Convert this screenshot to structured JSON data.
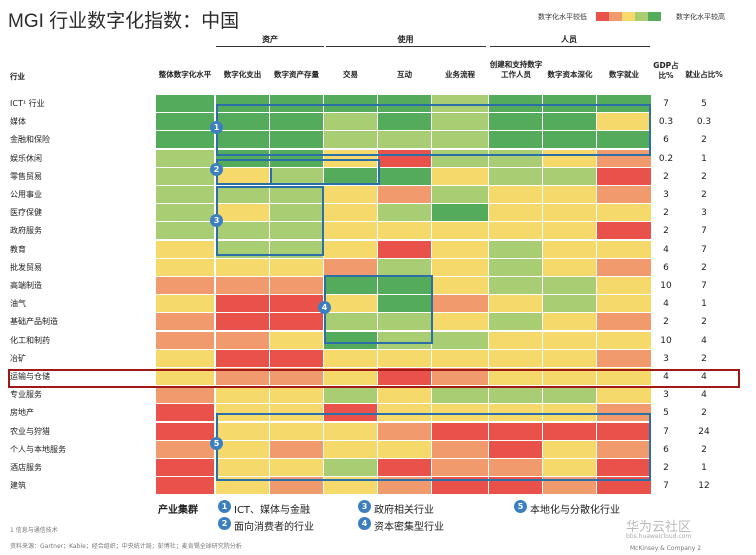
{
  "title": "MGI 行业数字化指数：中国",
  "legend": {
    "low_label": "数字化水平较低",
    "high_label": "数字化水平较高",
    "colors": [
      "#e8524a",
      "#f19a6d",
      "#f6d96b",
      "#a8cd73",
      "#55ab5c"
    ]
  },
  "groups": [
    "资产",
    "使用",
    "人员"
  ],
  "headers": {
    "industry": "行业",
    "overall": "整体数字化水平",
    "columns": [
      "数字化支出",
      "数字资产存量",
      "交易",
      "互动",
      "业务流程",
      "创建和支持数字工作人员",
      "数字资本深化",
      "数字就业"
    ],
    "gdp": "GDP占比%",
    "emp": "就业占比%"
  },
  "colors": {
    "1": "#e8524a",
    "2": "#f19a6d",
    "3": "#f6d96b",
    "4": "#a8cd73",
    "5": "#55ab5c",
    "outline": "#2a6fa8",
    "row_highlight": "#a01818"
  },
  "chart_data": {
    "type": "heatmap",
    "scale_note": "1 = 数字化水平较低 (red) ... 5 = 数字化水平较高 (green)",
    "rows": [
      {
        "label": "ICT¹ 行业",
        "gdp": "7",
        "emp": "5",
        "v": [
          5,
          5,
          5,
          5,
          5,
          4,
          5,
          5,
          5
        ]
      },
      {
        "label": "媒体",
        "gdp": "0.3",
        "emp": "0.3",
        "v": [
          5,
          5,
          5,
          4,
          5,
          4,
          5,
          5,
          3
        ]
      },
      {
        "label": "金融和保险",
        "gdp": "6",
        "emp": "2",
        "v": [
          5,
          5,
          5,
          4,
          4,
          4,
          5,
          5,
          5
        ]
      },
      {
        "label": "娱乐休闲",
        "gdp": "0.2",
        "emp": "1",
        "v": [
          4,
          5,
          5,
          3,
          1,
          4,
          4,
          3,
          2
        ]
      },
      {
        "label": "零售贸易",
        "gdp": "2",
        "emp": "2",
        "v": [
          4,
          3,
          4,
          5,
          5,
          3,
          4,
          4,
          1
        ]
      },
      {
        "label": "公用事业",
        "gdp": "3",
        "emp": "2",
        "v": [
          4,
          4,
          4,
          3,
          2,
          4,
          3,
          3,
          2
        ]
      },
      {
        "label": "医疗保健",
        "gdp": "2",
        "emp": "3",
        "v": [
          4,
          3,
          4,
          3,
          4,
          5,
          3,
          3,
          3
        ]
      },
      {
        "label": "政府服务",
        "gdp": "2",
        "emp": "7",
        "v": [
          4,
          4,
          4,
          3,
          3,
          3,
          3,
          3,
          1
        ]
      },
      {
        "label": "教育",
        "gdp": "4",
        "emp": "7",
        "v": [
          3,
          4,
          4,
          3,
          1,
          3,
          4,
          3,
          3
        ]
      },
      {
        "label": "批发贸易",
        "gdp": "6",
        "emp": "2",
        "v": [
          3,
          3,
          3,
          2,
          4,
          3,
          4,
          3,
          2
        ]
      },
      {
        "label": "高端制造",
        "gdp": "10",
        "emp": "7",
        "v": [
          2,
          2,
          2,
          5,
          5,
          3,
          4,
          4,
          3
        ]
      },
      {
        "label": "油气",
        "gdp": "4",
        "emp": "1",
        "v": [
          3,
          1,
          1,
          3,
          5,
          2,
          3,
          4,
          3
        ]
      },
      {
        "label": "基础产品制造",
        "gdp": "2",
        "emp": "2",
        "v": [
          2,
          1,
          1,
          4,
          4,
          3,
          4,
          3,
          2
        ]
      },
      {
        "label": "化工和制药",
        "gdp": "10",
        "emp": "4",
        "v": [
          2,
          2,
          3,
          5,
          4,
          4,
          3,
          3,
          3
        ]
      },
      {
        "label": "冶矿",
        "gdp": "3",
        "emp": "2",
        "v": [
          3,
          1,
          1,
          3,
          3,
          3,
          3,
          3,
          2
        ]
      },
      {
        "label": "运输与仓储",
        "gdp": "4",
        "emp": "4",
        "v": [
          3,
          2,
          2,
          3,
          1,
          2,
          3,
          3,
          3
        ]
      },
      {
        "label": "专业服务",
        "gdp": "3",
        "emp": "4",
        "v": [
          2,
          3,
          3,
          4,
          3,
          4,
          4,
          4,
          3
        ]
      },
      {
        "label": "房地产",
        "gdp": "5",
        "emp": "2",
        "v": [
          1,
          3,
          3,
          1,
          3,
          3,
          3,
          3,
          2
        ]
      },
      {
        "label": "农业与狩猎",
        "gdp": "7",
        "emp": "24",
        "v": [
          1,
          3,
          3,
          3,
          2,
          1,
          1,
          1,
          1
        ]
      },
      {
        "label": "个人与本地服务",
        "gdp": "6",
        "emp": "2",
        "v": [
          2,
          3,
          2,
          3,
          3,
          2,
          1,
          3,
          2
        ]
      },
      {
        "label": "酒店服务",
        "gdp": "2",
        "emp": "1",
        "v": [
          1,
          3,
          3,
          4,
          1,
          2,
          2,
          3,
          1
        ]
      },
      {
        "label": "建筑",
        "gdp": "7",
        "emp": "12",
        "v": [
          1,
          3,
          2,
          3,
          2,
          1,
          1,
          2,
          1
        ]
      }
    ]
  },
  "clusters": {
    "title": "产业集群",
    "items": [
      {
        "num": "1",
        "label": "ICT、媒体与金融"
      },
      {
        "num": "2",
        "label": "面向消费者的行业"
      },
      {
        "num": "3",
        "label": "政府相关行业"
      },
      {
        "num": "4",
        "label": "资本密集型行业"
      },
      {
        "num": "5",
        "label": "本地化与分散化行业"
      }
    ]
  },
  "footnotes": {
    "note": "1 信息与通信技术",
    "source": "资料来源：Gartner；Kable；经合组织；中央统计局；彭博社；麦肯锡全球研究院分析",
    "credit": "McKinsey & Company  2"
  },
  "watermark": {
    "text": "华为云社区",
    "url": "bbs.huaweicloud.com"
  }
}
